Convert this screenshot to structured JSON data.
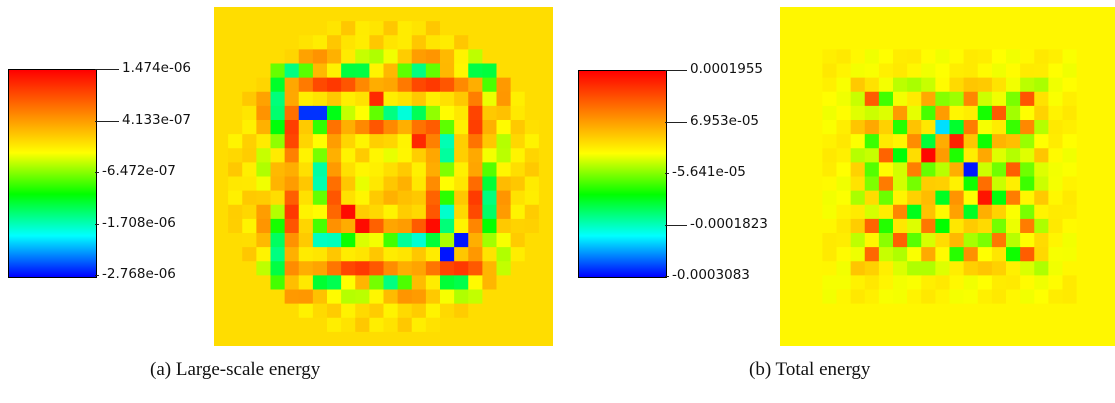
{
  "chart_data": [
    {
      "type": "heatmap",
      "caption": "(a) Large-scale energy",
      "colorbar": {
        "colors": [
          "#ff0000",
          "#ff7f00",
          "#ffff00",
          "#00ff00",
          "#00ffff",
          "#0000ff"
        ],
        "ticks": [
          "1.474e-06",
          "4.133e-07",
          "-6.472e-07",
          "-1.708e-06",
          "-2.768e-06"
        ],
        "range": [
          -2.768e-06,
          1.474e-06
        ]
      },
      "field": {
        "grid": 24,
        "background_value": 0.0,
        "pattern": "nested-square-rings"
      }
    },
    {
      "type": "heatmap",
      "caption": "(b) Total energy",
      "colorbar": {
        "colors": [
          "#ff0000",
          "#ff7f00",
          "#ffff00",
          "#00ff00",
          "#00ffff",
          "#0000ff"
        ],
        "ticks": [
          "0.0001955",
          "6.953e-05",
          "-5.641e-05",
          "-0.0001823",
          "-0.0003083"
        ],
        "range": [
          -0.0003083,
          0.0001955
        ]
      },
      "field": {
        "grid": 24,
        "background_value": 0.0,
        "pattern": "central-checker"
      }
    }
  ]
}
